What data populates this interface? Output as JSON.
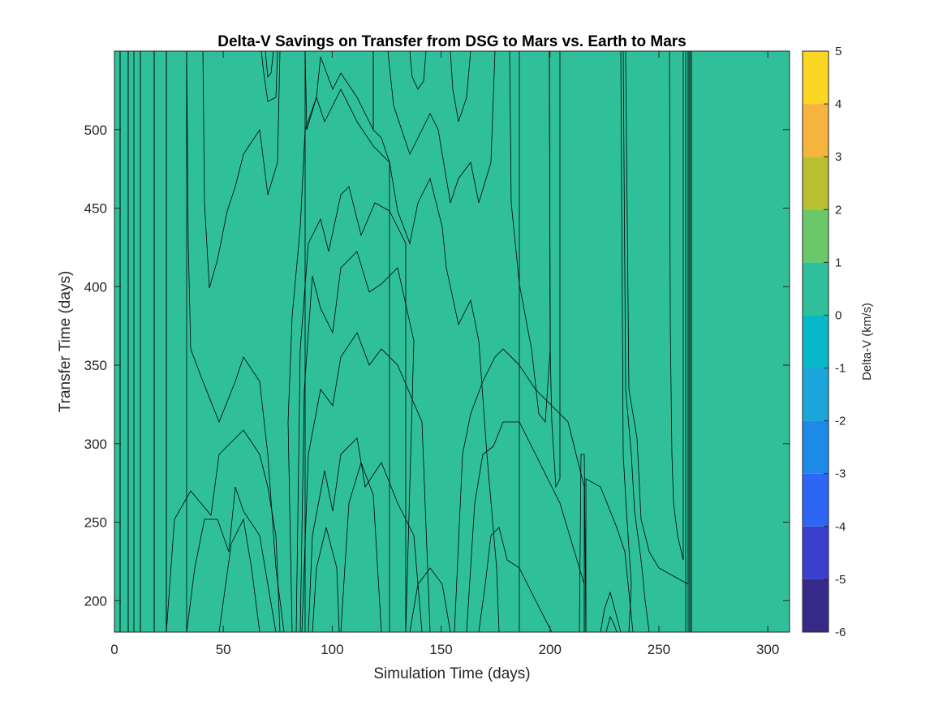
{
  "chart_data": {
    "type": "heatmap",
    "subtype": "filled-contour",
    "title": "Delta-V Savings on Transfer from DSG to Mars vs. Earth to Mars",
    "xlabel": "Simulation Time (days)",
    "ylabel": "Transfer Time (days)",
    "xlim": [
      0,
      310
    ],
    "ylim": [
      180,
      550
    ],
    "xticks": [
      "0",
      "50",
      "100",
      "150",
      "200",
      "250",
      "300"
    ],
    "yticks": [
      "200",
      "250",
      "300",
      "350",
      "400",
      "450",
      "500"
    ],
    "colorbar": {
      "label": "Delta-V (km/s)",
      "limits": [
        -6,
        5
      ],
      "ticks": [
        "5",
        "4",
        "3",
        "2",
        "1",
        "0",
        "-1",
        "-2",
        "-3",
        "-4",
        "-5",
        "-6"
      ],
      "levels": [
        -6,
        -5,
        -4,
        -3,
        -2,
        -1,
        0,
        1,
        2,
        3,
        4,
        5
      ],
      "colormap": "parula",
      "location": "right"
    },
    "colors": {
      "level_-6": "#352a87",
      "level_-5": "#3b3fce",
      "level_-4": "#2d66f4",
      "level_-3": "#1e8ae8",
      "level_-2": "#1aa6db",
      "level_-1": "#08b8c8",
      "level_0": "#2fc09b",
      "level_1": "#6ac86b",
      "level_2": "#b8c032",
      "level_3": "#f5b43e",
      "level_4": "#fbd624",
      "level_5": "#f9fb0e"
    },
    "grid": false
  }
}
